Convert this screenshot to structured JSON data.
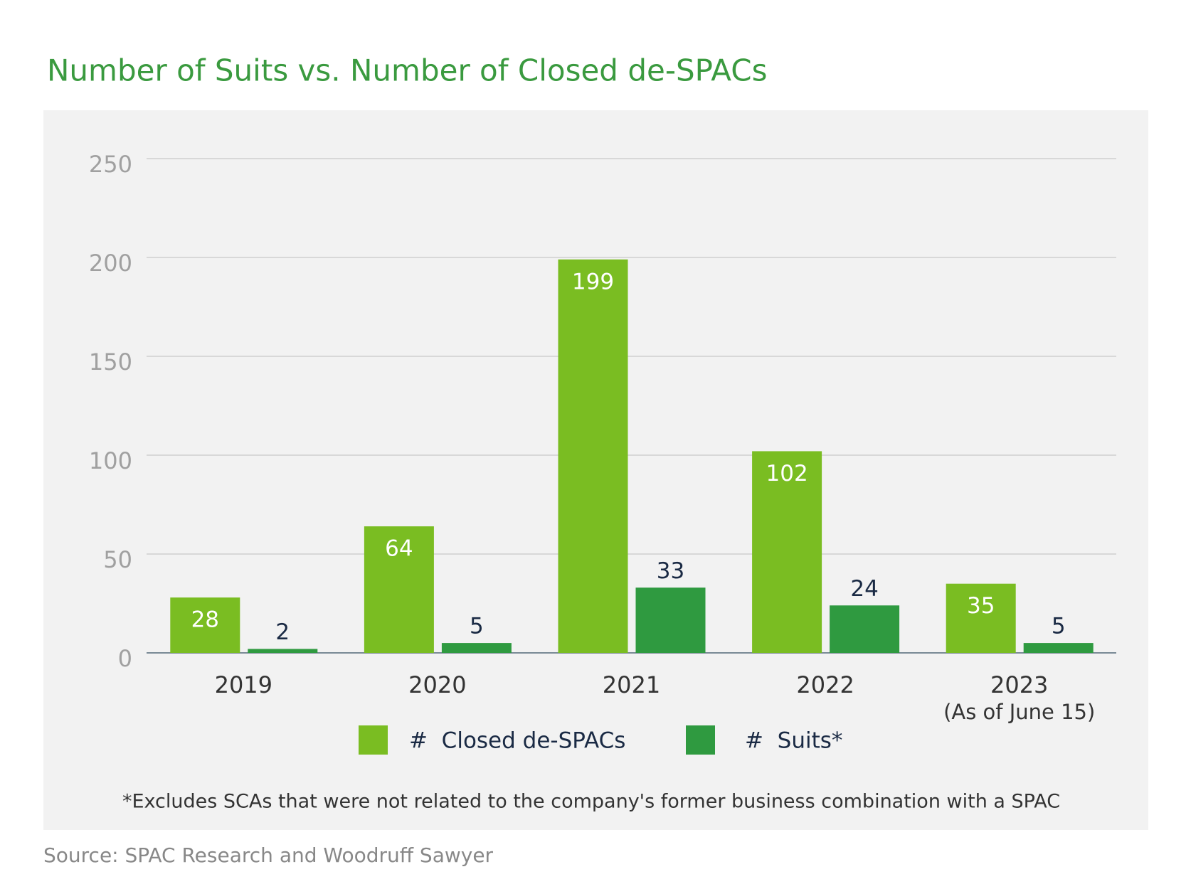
{
  "chart_data": {
    "type": "bar",
    "title": "Number of Suits vs. Number of Closed de-SPACs",
    "categories": [
      "2019",
      "2020",
      "2021",
      "2022",
      "2023"
    ],
    "category_note": "(As of June 15)",
    "series": [
      {
        "name": "#  Closed de-SPACs",
        "color": "#7abd22",
        "values": [
          28,
          64,
          199,
          102,
          35
        ]
      },
      {
        "name": "#  Suits*",
        "color": "#2f9a40",
        "values": [
          2,
          5,
          33,
          24,
          5
        ]
      }
    ],
    "ylim": [
      0,
      250
    ],
    "yticks": [
      0,
      50,
      100,
      150,
      200,
      250
    ],
    "grid": true,
    "footnote": "*Excludes SCAs that were not related to the company's former business combination with a SPAC",
    "source": "Source: SPAC Research and Woodruff Sawyer"
  }
}
